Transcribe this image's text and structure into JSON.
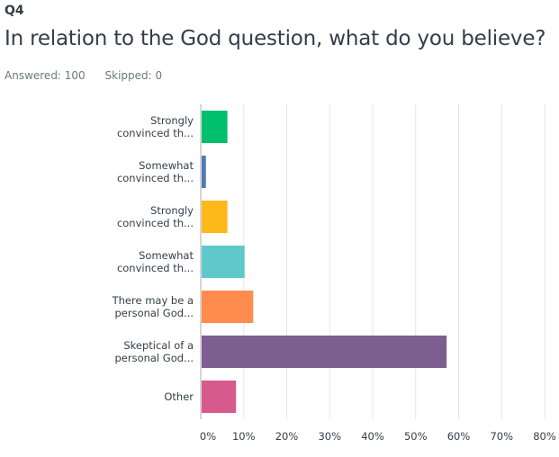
{
  "question": {
    "number": "Q4",
    "title": "In relation to the God question, what do you believe?",
    "answered": "Answered: 100",
    "skipped": "Skipped: 0"
  },
  "chart_data": {
    "type": "bar",
    "orientation": "horizontal",
    "title": "In relation to the God question, what do you believe?",
    "categories": [
      [
        "Strongly",
        "convinced th..."
      ],
      [
        "Somewhat",
        "convinced th..."
      ],
      [
        "Strongly",
        "convinced th..."
      ],
      [
        "Somewhat",
        "convinced th..."
      ],
      [
        "There may be a",
        "personal God..."
      ],
      [
        "Skeptical of a",
        "personal God..."
      ],
      [
        "Other"
      ]
    ],
    "values": [
      6,
      1,
      6,
      10,
      12,
      57,
      8
    ],
    "colors": [
      "#00bf6f",
      "#507cb6",
      "#ffb819",
      "#5ec8cb",
      "#ff8b4f",
      "#7d5e90",
      "#d65a8c"
    ],
    "xlim": [
      0,
      80
    ],
    "ticks": [
      0,
      10,
      20,
      30,
      40,
      50,
      60,
      70,
      80
    ],
    "tick_labels": [
      "0%",
      "10%",
      "20%",
      "30%",
      "40%",
      "50%",
      "60%",
      "70%",
      "80%"
    ],
    "grid": true,
    "unit": "%"
  }
}
